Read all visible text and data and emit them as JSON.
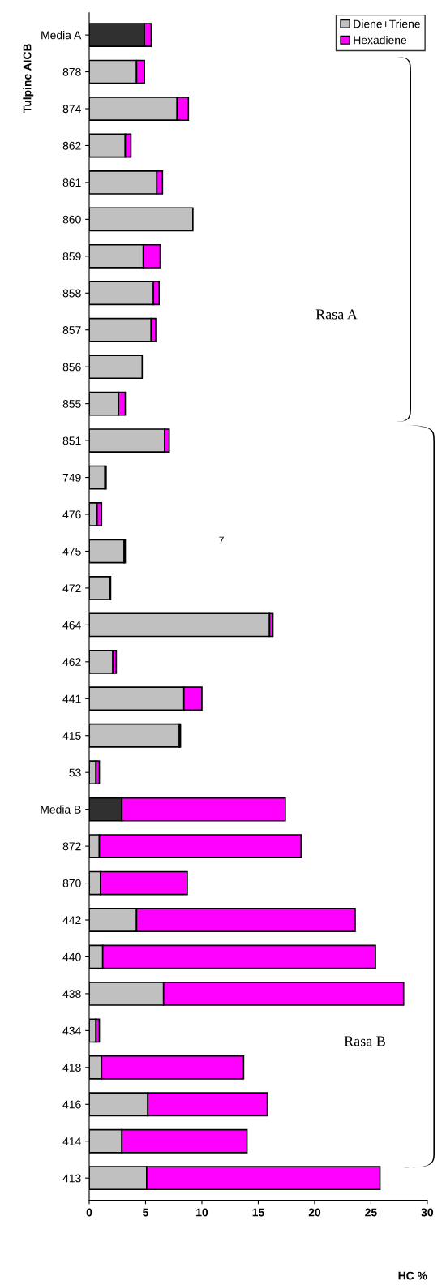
{
  "chart_data": {
    "type": "bar",
    "orientation": "horizontal",
    "stacked": true,
    "categories": [
      "Media A",
      "878",
      "874",
      "862",
      "861",
      "860",
      "859",
      "858",
      "857",
      "856",
      "855",
      "851",
      "749",
      "476",
      "475",
      "472",
      "464",
      "462",
      "441",
      "415",
      "53",
      "Media B",
      "872",
      "870",
      "442",
      "440",
      "438",
      "434",
      "418",
      "416",
      "414",
      "413"
    ],
    "series": [
      {
        "name": "Diene+Triene",
        "color": "#c0c0c0",
        "colors": [
          "#303030",
          "#c0c0c0",
          "#c0c0c0",
          "#c0c0c0",
          "#c0c0c0",
          "#c0c0c0",
          "#c0c0c0",
          "#c0c0c0",
          "#c0c0c0",
          "#c0c0c0",
          "#c0c0c0",
          "#c0c0c0",
          "#c0c0c0",
          "#c0c0c0",
          "#c0c0c0",
          "#c0c0c0",
          "#c0c0c0",
          "#c0c0c0",
          "#c0c0c0",
          "#c0c0c0",
          "#c0c0c0",
          "#303030",
          "#c0c0c0",
          "#c0c0c0",
          "#c0c0c0",
          "#c0c0c0",
          "#c0c0c0",
          "#c0c0c0",
          "#c0c0c0",
          "#c0c0c0",
          "#c0c0c0",
          "#c0c0c0"
        ],
        "values": [
          4.9,
          4.2,
          7.8,
          3.2,
          6.0,
          9.2,
          4.8,
          5.7,
          5.5,
          4.7,
          2.6,
          6.7,
          1.4,
          0.7,
          3.1,
          1.8,
          16.0,
          2.1,
          8.4,
          8.0,
          0.6,
          2.9,
          0.9,
          1.0,
          4.2,
          1.2,
          6.6,
          0.6,
          1.1,
          5.2,
          2.9,
          5.1
        ]
      },
      {
        "name": "Hexadiene",
        "color": "#ff00ff",
        "values": [
          0.6,
          0.7,
          1.0,
          0.5,
          0.5,
          0,
          1.5,
          0.5,
          0.4,
          0,
          0.6,
          0.4,
          0.1,
          0.4,
          0.1,
          0.1,
          0.3,
          0.3,
          1.6,
          0.1,
          0.3,
          14.5,
          17.9,
          7.7,
          19.4,
          24.2,
          21.3,
          0.3,
          12.6,
          10.6,
          11.1,
          20.7
        ]
      }
    ],
    "xlim": [
      0,
      30
    ],
    "xticks": [
      0,
      5,
      10,
      15,
      20,
      25,
      30
    ],
    "xlabel": "HC %",
    "ylabel": "Tulpine AICB",
    "legend": "top right",
    "grid": false,
    "annotations": [
      "Rasa A",
      "Rasa B",
      "7"
    ]
  }
}
